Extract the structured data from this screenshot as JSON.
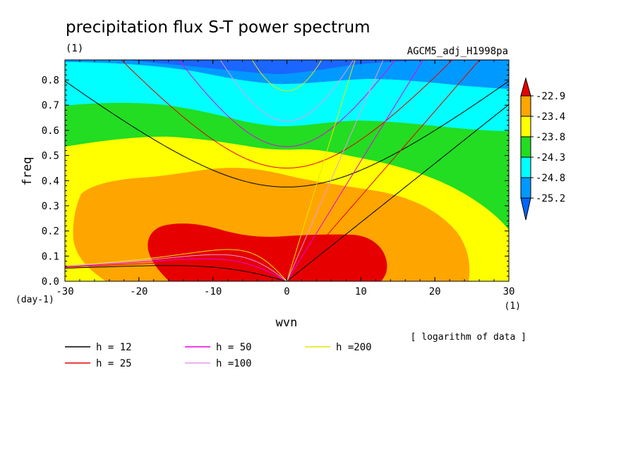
{
  "chart_data": {
    "type": "heatmap",
    "title": "precipitation flux S-T power spectrum",
    "subtitle_left": "(1)",
    "subtitle_right": "AGCM5_adj_H1998pa",
    "xlabel": "wvn",
    "ylabel": "freq",
    "x_unit_label": "(1)",
    "y_unit_label": "(day-1)",
    "xlim": [
      -30,
      30
    ],
    "ylim": [
      0,
      0.88
    ],
    "x_ticks": [
      -30,
      -20,
      -10,
      0,
      10,
      20,
      30
    ],
    "x_tick_labels": [
      "-30",
      "-20",
      "-10",
      "0",
      "10",
      "20",
      "30"
    ],
    "y_ticks": [
      0.0,
      0.1,
      0.2,
      0.3,
      0.4,
      0.5,
      0.6,
      0.7,
      0.8
    ],
    "y_tick_labels": [
      "0.0",
      "0.1",
      "0.2",
      "0.3",
      "0.4",
      "0.5",
      "0.6",
      "0.7",
      "0.8"
    ],
    "colorbar": {
      "levels": [
        "-22.9",
        "-23.4",
        "-23.8",
        "-24.3",
        "-24.8",
        "-25.2"
      ],
      "colors_top_to_bottom": [
        "#e60000",
        "#ffa500",
        "#ffff00",
        "#22dd22",
        "#00ffff",
        "#0099ff",
        "#0066ff"
      ],
      "note": "[ logarithm of data ]"
    },
    "fill_colors": {
      "dark_blue": "#1a66ff",
      "blue": "#0099ff",
      "cyan": "#00ffff",
      "green": "#22dd22",
      "yellow": "#ffff00",
      "orange": "#ffa500",
      "red": "#e60000"
    },
    "dispersion_curves": [
      {
        "label": "h = 12",
        "color": "#000000"
      },
      {
        "label": "h = 25",
        "color": "#e60000"
      },
      {
        "label": "h = 50",
        "color": "#e600e6"
      },
      {
        "label": "h =100",
        "color": "#e699e6"
      },
      {
        "label": "h =200",
        "color": "#e6e600"
      }
    ]
  }
}
